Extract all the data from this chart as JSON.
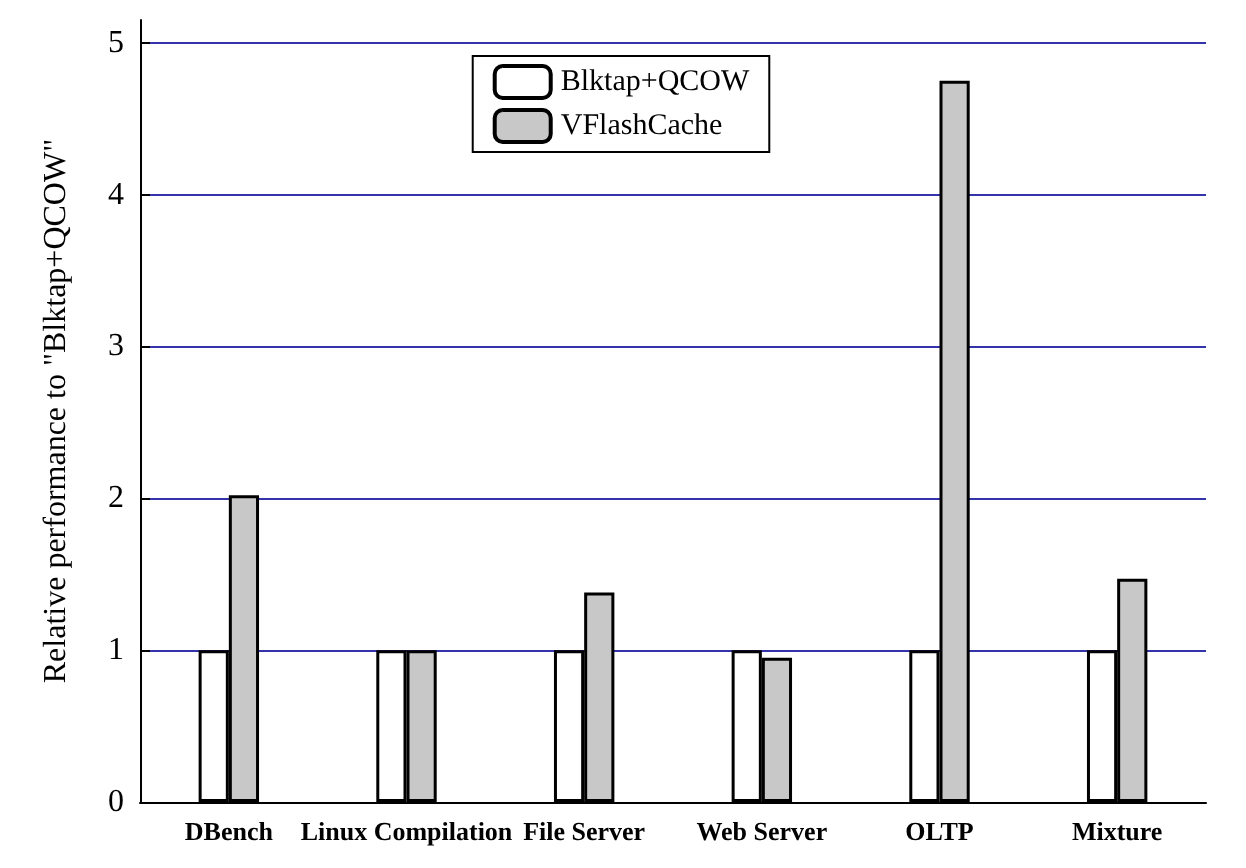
{
  "chart_data": {
    "type": "bar",
    "ylabel": "Relative performance to \"Blktap+QCOW\"",
    "categories": [
      "DBench",
      "Linux Compilation",
      "File Server",
      "Web Server",
      "OLTP",
      "Mixture"
    ],
    "series": [
      {
        "name": "Blktap+QCOW",
        "color": "#ffffff",
        "values": [
          1,
          1,
          1,
          1,
          1,
          1
        ]
      },
      {
        "name": "VFlashCache",
        "color": "#c8c8c8",
        "values": [
          2.02,
          1,
          1.38,
          0.95,
          4.75,
          1.47
        ]
      }
    ],
    "ylim": [
      0,
      5.15
    ],
    "yticks": [
      0,
      1,
      2,
      3,
      4,
      5
    ],
    "grid": "y",
    "legend": "top"
  }
}
